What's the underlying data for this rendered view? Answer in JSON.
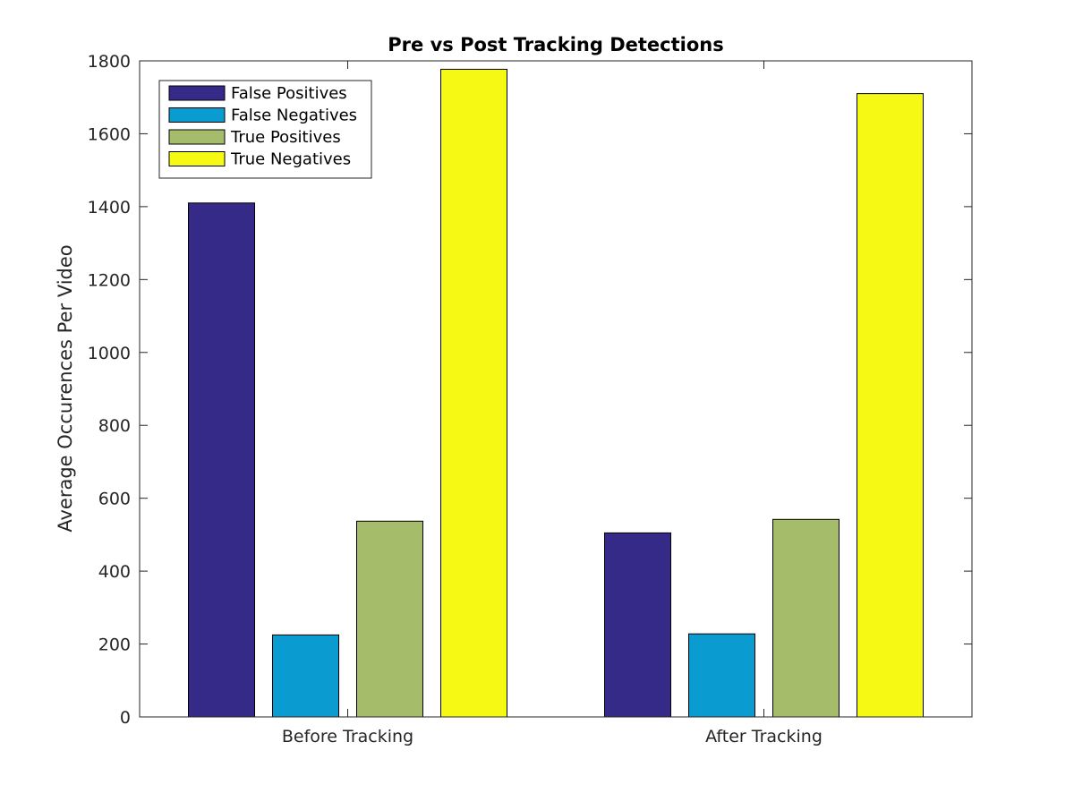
{
  "chart_data": {
    "type": "bar",
    "title": "Pre vs Post Tracking Detections",
    "xlabel": "",
    "ylabel": "Average Occurences Per Video",
    "categories": [
      "Before Tracking",
      "After Tracking"
    ],
    "series": [
      {
        "name": "False Positives",
        "color": "#352a87",
        "values": [
          1410,
          505
        ]
      },
      {
        "name": "False Negatives",
        "color": "#0a9bd1",
        "values": [
          225,
          228
        ]
      },
      {
        "name": "True Positives",
        "color": "#a5bd6a",
        "values": [
          537,
          542
        ]
      },
      {
        "name": "True Negatives",
        "color": "#f5f913",
        "values": [
          1777,
          1710
        ]
      }
    ],
    "ylim": [
      0,
      1800
    ],
    "yticks": [
      0,
      200,
      400,
      600,
      800,
      1000,
      1200,
      1400,
      1600,
      1800
    ],
    "grid": false,
    "legend_position": "top-left"
  }
}
